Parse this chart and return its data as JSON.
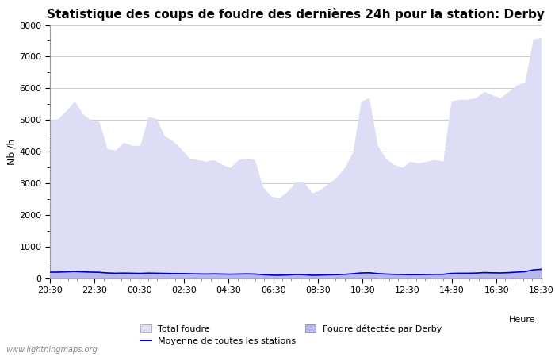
{
  "title": "Statistique des coups de foudre des dernières 24h pour la station: Derby",
  "xlabel": "Heure",
  "ylabel": "Nb /h",
  "ylim": [
    0,
    8000
  ],
  "yticks": [
    0,
    1000,
    2000,
    3000,
    4000,
    5000,
    6000,
    7000,
    8000
  ],
  "x_labels": [
    "20:30",
    "22:30",
    "00:30",
    "02:30",
    "04:30",
    "06:30",
    "08:30",
    "10:30",
    "12:30",
    "14:30",
    "16:30",
    "18:30"
  ],
  "total_foudre_color": "#ddddf5",
  "derby_color": "#b8b8ee",
  "moyenne_color": "#0000cc",
  "background_color": "#ffffff",
  "grid_color": "#cccccc",
  "watermark": "www.lightningmaps.org",
  "total_foudre": [
    5000,
    5050,
    5300,
    5600,
    5200,
    5000,
    4950,
    4100,
    4050,
    4300,
    4200,
    4200,
    5100,
    5050,
    4500,
    4350,
    4100,
    3800,
    3750,
    3700,
    3750,
    3600,
    3500,
    3750,
    3800,
    3750,
    2900,
    2600,
    2550,
    2750,
    3050,
    3050,
    2700,
    2800,
    3000,
    3200,
    3500,
    4000,
    5600,
    5700,
    4200,
    3800,
    3600,
    3500,
    3700,
    3650,
    3700,
    3750,
    3700,
    5600,
    5650,
    5650,
    5700,
    5900,
    5800,
    5700,
    5900,
    6100,
    6200,
    7550,
    7600
  ],
  "derby_foudre": [
    200,
    200,
    210,
    220,
    210,
    200,
    195,
    175,
    165,
    170,
    165,
    160,
    170,
    165,
    160,
    155,
    155,
    150,
    145,
    140,
    145,
    140,
    135,
    140,
    145,
    140,
    120,
    105,
    100,
    110,
    125,
    120,
    100,
    105,
    115,
    120,
    130,
    150,
    175,
    180,
    155,
    140,
    130,
    125,
    120,
    120,
    125,
    130,
    130,
    160,
    165,
    165,
    170,
    185,
    180,
    175,
    185,
    200,
    215,
    270,
    290
  ],
  "moyenne": [
    200,
    200,
    210,
    220,
    210,
    200,
    195,
    175,
    165,
    170,
    165,
    160,
    170,
    165,
    160,
    155,
    155,
    150,
    145,
    140,
    145,
    140,
    135,
    140,
    145,
    140,
    120,
    105,
    100,
    110,
    125,
    120,
    100,
    105,
    115,
    120,
    130,
    150,
    175,
    180,
    155,
    140,
    130,
    125,
    120,
    120,
    125,
    130,
    130,
    160,
    165,
    165,
    170,
    185,
    180,
    175,
    185,
    200,
    215,
    270,
    290
  ],
  "n_points": 61
}
